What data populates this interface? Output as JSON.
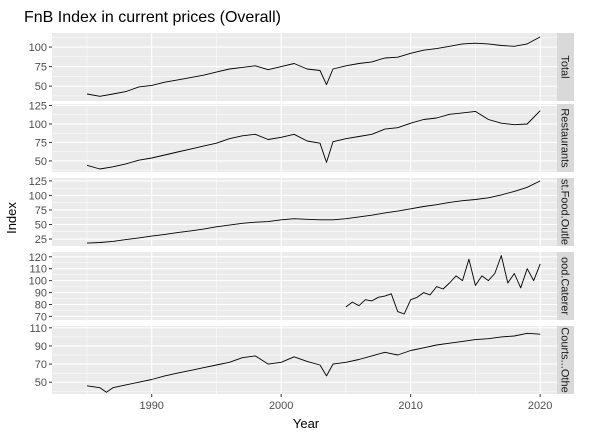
{
  "chart_data": {
    "type": "line",
    "title": "FnB Index in current prices (Overall)",
    "xlabel": "Year",
    "ylabel": "Index",
    "xlim": [
      1982.3,
      2021.3
    ],
    "x_ticks": [
      "1990",
      "2000",
      "2010",
      "2020"
    ],
    "grid": true,
    "facet_layout": "vertical, strip labels on right",
    "colors": {
      "line": "#000000",
      "panel_bg": "#ebebeb",
      "strip_bg": "#d9d9d9",
      "grid": "#ffffff"
    },
    "panels": [
      {
        "name": "Total",
        "ylim": [
          31,
          118
        ],
        "yticks": [
          "50",
          "75",
          "100"
        ],
        "series": [
          {
            "year": 1985.0,
            "value": 40
          },
          {
            "year": 1986.0,
            "value": 37
          },
          {
            "year": 1987.0,
            "value": 40
          },
          {
            "year": 1988.0,
            "value": 43
          },
          {
            "year": 1989.0,
            "value": 49
          },
          {
            "year": 1990.0,
            "value": 51
          },
          {
            "year": 1991.0,
            "value": 55
          },
          {
            "year": 1992.0,
            "value": 58
          },
          {
            "year": 1993.0,
            "value": 61
          },
          {
            "year": 1994.0,
            "value": 64
          },
          {
            "year": 1995.0,
            "value": 68
          },
          {
            "year": 1996.0,
            "value": 72
          },
          {
            "year": 1997.0,
            "value": 74
          },
          {
            "year": 1998.0,
            "value": 76
          },
          {
            "year": 1999.0,
            "value": 71
          },
          {
            "year": 2000.0,
            "value": 75
          },
          {
            "year": 2001.0,
            "value": 79
          },
          {
            "year": 2002.0,
            "value": 72
          },
          {
            "year": 2003.0,
            "value": 70
          },
          {
            "year": 2003.5,
            "value": 52
          },
          {
            "year": 2004.0,
            "value": 72
          },
          {
            "year": 2005.0,
            "value": 76
          },
          {
            "year": 2006.0,
            "value": 79
          },
          {
            "year": 2007.0,
            "value": 81
          },
          {
            "year": 2008.0,
            "value": 86
          },
          {
            "year": 2009.0,
            "value": 87
          },
          {
            "year": 2010.0,
            "value": 92
          },
          {
            "year": 2011.0,
            "value": 96
          },
          {
            "year": 2012.0,
            "value": 98
          },
          {
            "year": 2013.0,
            "value": 101
          },
          {
            "year": 2014.0,
            "value": 104
          },
          {
            "year": 2015.0,
            "value": 105
          },
          {
            "year": 2016.0,
            "value": 104
          },
          {
            "year": 2017.0,
            "value": 102
          },
          {
            "year": 2018.0,
            "value": 101
          },
          {
            "year": 2019.0,
            "value": 104
          },
          {
            "year": 2020.0,
            "value": 113
          }
        ]
      },
      {
        "name": "Restaurants",
        "ylim": [
          35,
          127
        ],
        "yticks": [
          "50",
          "75",
          "100",
          "125"
        ],
        "series": [
          {
            "year": 1985.0,
            "value": 44
          },
          {
            "year": 1986.0,
            "value": 39
          },
          {
            "year": 1987.0,
            "value": 42
          },
          {
            "year": 1988.0,
            "value": 46
          },
          {
            "year": 1989.0,
            "value": 51
          },
          {
            "year": 1990.0,
            "value": 54
          },
          {
            "year": 1991.0,
            "value": 58
          },
          {
            "year": 1992.0,
            "value": 62
          },
          {
            "year": 1993.0,
            "value": 66
          },
          {
            "year": 1994.0,
            "value": 70
          },
          {
            "year": 1995.0,
            "value": 74
          },
          {
            "year": 1996.0,
            "value": 80
          },
          {
            "year": 1997.0,
            "value": 84
          },
          {
            "year": 1998.0,
            "value": 86
          },
          {
            "year": 1999.0,
            "value": 79
          },
          {
            "year": 2000.0,
            "value": 82
          },
          {
            "year": 2001.0,
            "value": 86
          },
          {
            "year": 2002.0,
            "value": 77
          },
          {
            "year": 2003.0,
            "value": 74
          },
          {
            "year": 2003.5,
            "value": 48
          },
          {
            "year": 2004.0,
            "value": 76
          },
          {
            "year": 2005.0,
            "value": 80
          },
          {
            "year": 2006.0,
            "value": 83
          },
          {
            "year": 2007.0,
            "value": 86
          },
          {
            "year": 2008.0,
            "value": 93
          },
          {
            "year": 2009.0,
            "value": 95
          },
          {
            "year": 2010.0,
            "value": 101
          },
          {
            "year": 2011.0,
            "value": 106
          },
          {
            "year": 2012.0,
            "value": 108
          },
          {
            "year": 2013.0,
            "value": 113
          },
          {
            "year": 2014.0,
            "value": 115
          },
          {
            "year": 2015.0,
            "value": 117
          },
          {
            "year": 2016.0,
            "value": 106
          },
          {
            "year": 2017.0,
            "value": 101
          },
          {
            "year": 2018.0,
            "value": 99
          },
          {
            "year": 2019.0,
            "value": 100
          },
          {
            "year": 2020.0,
            "value": 118
          }
        ]
      },
      {
        "name": "Fast.Food.Outlets",
        "ylim": [
          13,
          130
        ],
        "yticks": [
          "25",
          "50",
          "75",
          "100",
          "125"
        ],
        "series": [
          {
            "year": 1985.0,
            "value": 18
          },
          {
            "year": 1986.0,
            "value": 19
          },
          {
            "year": 1987.0,
            "value": 21
          },
          {
            "year": 1988.0,
            "value": 24
          },
          {
            "year": 1989.0,
            "value": 27
          },
          {
            "year": 1990.0,
            "value": 30
          },
          {
            "year": 1991.0,
            "value": 33
          },
          {
            "year": 1992.0,
            "value": 36
          },
          {
            "year": 1993.0,
            "value": 39
          },
          {
            "year": 1994.0,
            "value": 42
          },
          {
            "year": 1995.0,
            "value": 46
          },
          {
            "year": 1996.0,
            "value": 49
          },
          {
            "year": 1997.0,
            "value": 52
          },
          {
            "year": 1998.0,
            "value": 54
          },
          {
            "year": 1999.0,
            "value": 55
          },
          {
            "year": 2000.0,
            "value": 58
          },
          {
            "year": 2001.0,
            "value": 60
          },
          {
            "year": 2002.0,
            "value": 59
          },
          {
            "year": 2003.0,
            "value": 58
          },
          {
            "year": 2004.0,
            "value": 58
          },
          {
            "year": 2005.0,
            "value": 60
          },
          {
            "year": 2006.0,
            "value": 63
          },
          {
            "year": 2007.0,
            "value": 66
          },
          {
            "year": 2008.0,
            "value": 70
          },
          {
            "year": 2009.0,
            "value": 73
          },
          {
            "year": 2010.0,
            "value": 77
          },
          {
            "year": 2011.0,
            "value": 81
          },
          {
            "year": 2012.0,
            "value": 84
          },
          {
            "year": 2013.0,
            "value": 88
          },
          {
            "year": 2014.0,
            "value": 91
          },
          {
            "year": 2015.0,
            "value": 93
          },
          {
            "year": 2016.0,
            "value": 96
          },
          {
            "year": 2017.0,
            "value": 101
          },
          {
            "year": 2018.0,
            "value": 107
          },
          {
            "year": 2019.0,
            "value": 114
          },
          {
            "year": 2020.0,
            "value": 125
          }
        ]
      },
      {
        "name": "Food.Caterers",
        "ylim": [
          67,
          124
        ],
        "yticks": [
          "70",
          "80",
          "90",
          "100",
          "110",
          "120"
        ],
        "series": [
          {
            "year": 2005.0,
            "value": 78
          },
          {
            "year": 2005.5,
            "value": 82
          },
          {
            "year": 2006.0,
            "value": 79
          },
          {
            "year": 2006.5,
            "value": 84
          },
          {
            "year": 2007.0,
            "value": 83
          },
          {
            "year": 2007.5,
            "value": 86
          },
          {
            "year": 2008.0,
            "value": 87
          },
          {
            "year": 2008.5,
            "value": 89
          },
          {
            "year": 2009.0,
            "value": 74
          },
          {
            "year": 2009.5,
            "value": 72
          },
          {
            "year": 2010.0,
            "value": 84
          },
          {
            "year": 2010.5,
            "value": 86
          },
          {
            "year": 2011.0,
            "value": 90
          },
          {
            "year": 2011.5,
            "value": 88
          },
          {
            "year": 2012.0,
            "value": 95
          },
          {
            "year": 2012.5,
            "value": 93
          },
          {
            "year": 2013.0,
            "value": 98
          },
          {
            "year": 2013.5,
            "value": 104
          },
          {
            "year": 2014.0,
            "value": 100
          },
          {
            "year": 2014.5,
            "value": 118
          },
          {
            "year": 2015.0,
            "value": 96
          },
          {
            "year": 2015.5,
            "value": 104
          },
          {
            "year": 2016.0,
            "value": 100
          },
          {
            "year": 2016.5,
            "value": 106
          },
          {
            "year": 2017.0,
            "value": 121
          },
          {
            "year": 2017.5,
            "value": 98
          },
          {
            "year": 2018.0,
            "value": 106
          },
          {
            "year": 2018.5,
            "value": 94
          },
          {
            "year": 2019.0,
            "value": 110
          },
          {
            "year": 2019.5,
            "value": 100
          },
          {
            "year": 2020.0,
            "value": 114
          }
        ]
      },
      {
        "name": "Food.Courts...Other",
        "ylim": [
          37,
          112
        ],
        "yticks": [
          "50",
          "70",
          "90",
          "110"
        ],
        "series": [
          {
            "year": 1985.0,
            "value": 46
          },
          {
            "year": 1986.0,
            "value": 44
          },
          {
            "year": 1986.5,
            "value": 39
          },
          {
            "year": 1987.0,
            "value": 44
          },
          {
            "year": 1988.0,
            "value": 47
          },
          {
            "year": 1989.0,
            "value": 50
          },
          {
            "year": 1990.0,
            "value": 53
          },
          {
            "year": 1991.0,
            "value": 57
          },
          {
            "year": 1992.0,
            "value": 60
          },
          {
            "year": 1993.0,
            "value": 63
          },
          {
            "year": 1994.0,
            "value": 66
          },
          {
            "year": 1995.0,
            "value": 69
          },
          {
            "year": 1996.0,
            "value": 72
          },
          {
            "year": 1997.0,
            "value": 77
          },
          {
            "year": 1998.0,
            "value": 79
          },
          {
            "year": 1999.0,
            "value": 70
          },
          {
            "year": 2000.0,
            "value": 72
          },
          {
            "year": 2001.0,
            "value": 78
          },
          {
            "year": 2002.0,
            "value": 73
          },
          {
            "year": 2003.0,
            "value": 69
          },
          {
            "year": 2003.5,
            "value": 57
          },
          {
            "year": 2004.0,
            "value": 70
          },
          {
            "year": 2005.0,
            "value": 72
          },
          {
            "year": 2006.0,
            "value": 75
          },
          {
            "year": 2007.0,
            "value": 79
          },
          {
            "year": 2008.0,
            "value": 83
          },
          {
            "year": 2009.0,
            "value": 80
          },
          {
            "year": 2010.0,
            "value": 85
          },
          {
            "year": 2011.0,
            "value": 88
          },
          {
            "year": 2012.0,
            "value": 91
          },
          {
            "year": 2013.0,
            "value": 93
          },
          {
            "year": 2014.0,
            "value": 95
          },
          {
            "year": 2015.0,
            "value": 97
          },
          {
            "year": 2016.0,
            "value": 98
          },
          {
            "year": 2017.0,
            "value": 100
          },
          {
            "year": 2018.0,
            "value": 101
          },
          {
            "year": 2019.0,
            "value": 104
          },
          {
            "year": 2020.0,
            "value": 103
          }
        ]
      }
    ]
  },
  "strip_labels": [
    "Total",
    "Restaurants",
    "st.Food.Outle",
    "ood.Caterer",
    "Courts...Othe"
  ]
}
